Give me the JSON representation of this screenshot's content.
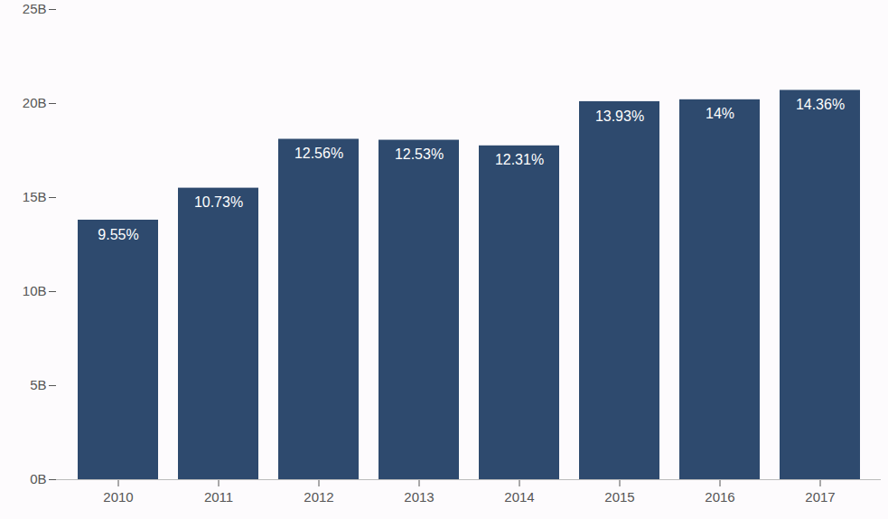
{
  "chart_data": {
    "type": "bar",
    "categories": [
      "2010",
      "2011",
      "2012",
      "2013",
      "2014",
      "2015",
      "2016",
      "2017"
    ],
    "values": [
      13.8,
      15.5,
      18.1,
      18.05,
      17.75,
      20.1,
      20.2,
      20.7
    ],
    "annotations": [
      "9.55%",
      "10.73%",
      "12.56%",
      "12.53%",
      "12.31%",
      "13.93%",
      "14%",
      "14.36%"
    ],
    "color": "#2e4a6e",
    "ylim": [
      0,
      25
    ],
    "yticks": [
      {
        "value": 0,
        "label": "0B"
      },
      {
        "value": 5,
        "label": "5B"
      },
      {
        "value": 10,
        "label": "10B"
      },
      {
        "value": 15,
        "label": "15B"
      },
      {
        "value": 20,
        "label": "20B"
      },
      {
        "value": 25,
        "label": "25B"
      }
    ],
    "grid": false
  }
}
